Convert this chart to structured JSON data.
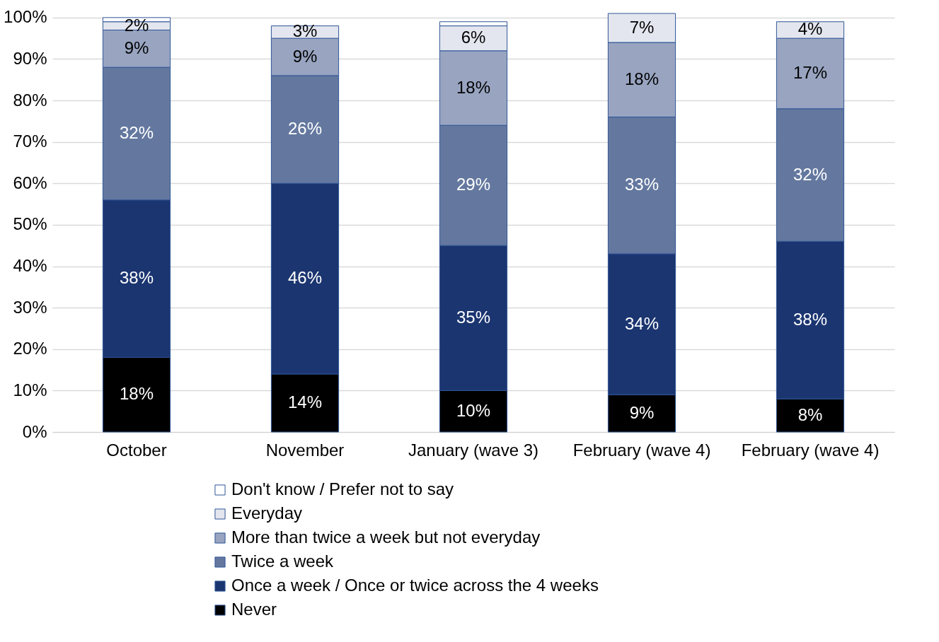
{
  "chart_data": {
    "type": "bar",
    "stacked": true,
    "categories": [
      "October",
      "November",
      "January (wave 3)",
      "February (wave 4)",
      "February (wave 4)"
    ],
    "series": [
      {
        "name": "Never",
        "color": "#000000",
        "values": [
          18,
          14,
          10,
          9,
          8
        ],
        "value_labels": [
          "18%",
          "14%",
          "10%",
          "9%",
          "8%"
        ]
      },
      {
        "name": "Once a week  / Once or twice across the 4 weeks",
        "color": "#1b3570",
        "values": [
          38,
          46,
          35,
          34,
          38
        ],
        "value_labels": [
          "38%",
          "46%",
          "35%",
          "34%",
          "38%"
        ]
      },
      {
        "name": "Twice a week",
        "color": "#64789f",
        "values": [
          32,
          26,
          29,
          33,
          32
        ],
        "value_labels": [
          "32%",
          "26%",
          "29%",
          "33%",
          "32%"
        ]
      },
      {
        "name": "More than twice a week but not everyday",
        "color": "#98a4c0",
        "values": [
          9,
          9,
          18,
          18,
          17
        ],
        "value_labels": [
          "9%",
          "9%",
          "18%",
          "18%",
          "17%"
        ]
      },
      {
        "name": "Everyday",
        "color": "#e3e6ee",
        "values": [
          2,
          3,
          6,
          7,
          4
        ],
        "value_labels": [
          "2%",
          "3%",
          "6%",
          "7%",
          "4%"
        ]
      },
      {
        "name": "Don't know / Prefer not to say",
        "color": "#ffffff",
        "values": [
          1,
          null,
          1,
          null,
          null
        ],
        "value_labels": [
          null,
          null,
          null,
          null,
          null
        ]
      }
    ],
    "ylim": [
      0,
      101
    ],
    "yticks": [
      {
        "value": 0,
        "label": "0%"
      },
      {
        "value": 10,
        "label": "10%"
      },
      {
        "value": 20,
        "label": "20%"
      },
      {
        "value": 30,
        "label": "30%"
      },
      {
        "value": 40,
        "label": "40%"
      },
      {
        "value": 50,
        "label": "50%"
      },
      {
        "value": 60,
        "label": "60%"
      },
      {
        "value": 70,
        "label": "70%"
      },
      {
        "value": 80,
        "label": "80%"
      },
      {
        "value": 90,
        "label": "90%"
      },
      {
        "value": 100,
        "label": "100%"
      }
    ],
    "grid": "y",
    "legend": "bottom"
  }
}
